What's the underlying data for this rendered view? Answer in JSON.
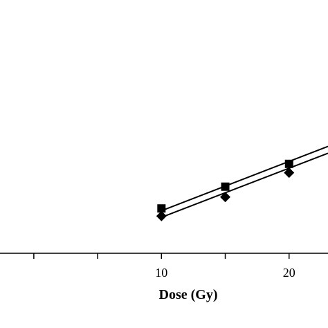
{
  "chart_data": {
    "type": "scatter",
    "xlabel": "Dose (Gy)",
    "xlim": [
      -2.65,
      23.05
    ],
    "ylim": [
      0,
      1
    ],
    "x_ticks": [
      0,
      5,
      10,
      15,
      20
    ],
    "x_tick_labels": [
      "10",
      "20"
    ],
    "x_labeled_ticks": [
      10,
      20
    ],
    "grid": false,
    "series": [
      {
        "marker": "square",
        "color": "#000000",
        "points": [
          [
            10,
            0.177
          ],
          [
            15,
            0.263
          ],
          [
            20,
            0.353
          ]
        ],
        "fit_line": {
          "x": [
            10,
            23.05
          ],
          "y": [
            0.168,
            0.422
          ]
        }
      },
      {
        "marker": "diamond",
        "color": "#000000",
        "points": [
          [
            10,
            0.147
          ],
          [
            15,
            0.222
          ],
          [
            20,
            0.318
          ]
        ],
        "fit_line": {
          "x": [
            10,
            23.05
          ],
          "y": [
            0.142,
            0.395
          ]
        }
      }
    ]
  }
}
